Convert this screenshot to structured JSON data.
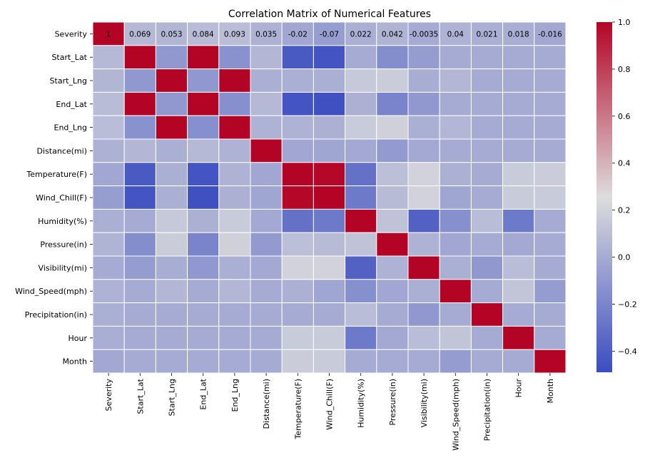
{
  "chart_data": {
    "type": "heatmap",
    "title": "Correlation Matrix of Numerical Features",
    "labels": [
      "Severity",
      "Start_Lat",
      "Start_Lng",
      "End_Lat",
      "End_Lng",
      "Distance(mi)",
      "Temperature(F)",
      "Wind_Chill(F)",
      "Humidity(%)",
      "Pressure(in)",
      "Visibility(mi)",
      "Wind_Speed(mph)",
      "Precipitation(in)",
      "Hour",
      "Month"
    ],
    "first_row_annotations": [
      "1",
      "0.069",
      "0.053",
      "0.084",
      "0.093",
      "0.035",
      "-0.02",
      "-0.07",
      "0.022",
      "0.042",
      "-0.0035",
      "0.04",
      "0.021",
      "0.018",
      "-0.016"
    ],
    "values": [
      [
        1,
        0.069,
        0.053,
        0.084,
        0.093,
        0.035,
        -0.02,
        -0.07,
        0.022,
        0.042,
        -0.0035,
        0.04,
        0.021,
        0.018,
        -0.016
      ],
      [
        0.069,
        1,
        -0.1,
        1,
        -0.13,
        0.06,
        -0.42,
        -0.45,
        0.0,
        -0.15,
        -0.08,
        0.0,
        0.0,
        0.0,
        0.0
      ],
      [
        0.053,
        -0.1,
        1,
        -0.1,
        1,
        0.02,
        0.02,
        0.02,
        0.15,
        0.17,
        0.01,
        0.06,
        0.0,
        0.0,
        0.0
      ],
      [
        0.084,
        1,
        -0.1,
        1,
        -0.14,
        0.07,
        -0.45,
        -0.47,
        0.03,
        -0.2,
        -0.1,
        0.0,
        0.0,
        0.0,
        0.0
      ],
      [
        0.093,
        -0.13,
        1,
        -0.14,
        1,
        0.04,
        0.04,
        0.03,
        0.16,
        0.19,
        0.02,
        0.06,
        0.0,
        0.0,
        0.0
      ],
      [
        0.035,
        0.06,
        0.02,
        0.07,
        0.04,
        1,
        -0.02,
        -0.03,
        -0.01,
        -0.09,
        -0.01,
        0.0,
        0.0,
        0.0,
        0.0
      ],
      [
        -0.02,
        -0.42,
        0.02,
        -0.45,
        0.04,
        -0.02,
        1,
        0.99,
        -0.3,
        0.1,
        0.2,
        0.03,
        0.0,
        0.16,
        0.17
      ],
      [
        -0.07,
        -0.45,
        0.02,
        -0.47,
        0.03,
        -0.03,
        0.99,
        1,
        -0.26,
        0.08,
        0.2,
        -0.03,
        0.0,
        0.16,
        0.16
      ],
      [
        0.022,
        0.0,
        0.15,
        0.03,
        0.16,
        -0.01,
        -0.3,
        -0.26,
        1,
        0.12,
        -0.38,
        -0.14,
        0.09,
        -0.26,
        0.0
      ],
      [
        0.042,
        -0.15,
        0.17,
        -0.2,
        0.19,
        -0.09,
        0.1,
        0.08,
        0.12,
        1,
        0.04,
        -0.02,
        0.0,
        -0.01,
        0.0
      ],
      [
        -0.0035,
        -0.08,
        0.01,
        -0.1,
        0.02,
        -0.01,
        0.2,
        0.2,
        -0.38,
        0.04,
        1,
        0.02,
        -0.1,
        0.09,
        0.0
      ],
      [
        0.04,
        0.0,
        0.06,
        0.0,
        0.06,
        0.0,
        0.03,
        -0.03,
        -0.14,
        -0.02,
        0.02,
        1,
        0.0,
        0.13,
        -0.08
      ],
      [
        0.021,
        0.0,
        0.0,
        0.0,
        0.0,
        0.0,
        0.0,
        0.0,
        0.09,
        0.0,
        -0.1,
        0.0,
        1,
        0.0,
        0.0
      ],
      [
        0.018,
        0.0,
        0.0,
        0.0,
        0.0,
        0.0,
        0.16,
        0.16,
        -0.26,
        -0.01,
        0.09,
        0.13,
        0.0,
        1,
        0.0
      ],
      [
        -0.016,
        0.0,
        0.0,
        0.0,
        0.0,
        0.0,
        0.17,
        0.16,
        0.0,
        0.0,
        0.0,
        -0.08,
        0.0,
        0.0,
        1
      ]
    ],
    "colormap": "coolwarm",
    "colorbar": {
      "vmin": -0.49,
      "vmax": 1.0,
      "ticks": [
        -0.4,
        -0.2,
        0.0,
        0.2,
        0.4,
        0.6,
        0.8,
        1.0
      ],
      "tick_labels": [
        "−0.4",
        "−0.2",
        "0.0",
        "0.2",
        "0.4",
        "0.6",
        "0.8",
        "1.0"
      ]
    },
    "colors": {
      "low": "#3b4cc0",
      "mid": "#dddddd",
      "high": "#b40426",
      "cell_border": "#ffffff"
    }
  }
}
